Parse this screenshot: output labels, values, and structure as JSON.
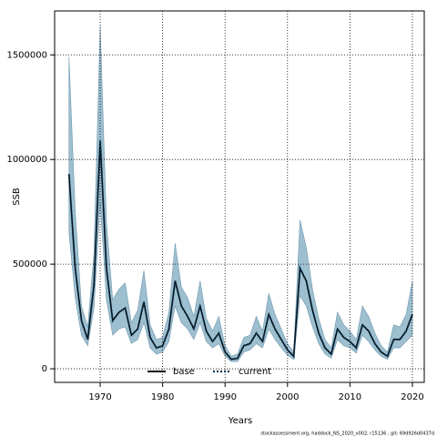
{
  "chart_data": {
    "type": "line",
    "xlabel": "Years",
    "ylabel": "SSB",
    "footer": "stockassessment.org, haddock_NS_2020_v002, r15136 , git: 69d926d0437d",
    "x": [
      1965,
      1966,
      1967,
      1968,
      1969,
      1970,
      1971,
      1972,
      1973,
      1974,
      1975,
      1976,
      1977,
      1978,
      1979,
      1980,
      1981,
      1982,
      1983,
      1984,
      1985,
      1986,
      1987,
      1988,
      1989,
      1990,
      1991,
      1992,
      1993,
      1994,
      1995,
      1996,
      1997,
      1998,
      1999,
      2000,
      2001,
      2002,
      2003,
      2004,
      2005,
      2006,
      2007,
      2008,
      2009,
      2010,
      2011,
      2012,
      2013,
      2014,
      2015,
      2016,
      2017,
      2018,
      2019,
      2020
    ],
    "series": [
      {
        "name": "base",
        "color": "#000000",
        "dash": "solid",
        "values": [
          930000,
          480000,
          230000,
          140000,
          400000,
          1090000,
          480000,
          230000,
          270000,
          290000,
          160000,
          190000,
          320000,
          150000,
          100000,
          110000,
          190000,
          420000,
          300000,
          250000,
          190000,
          300000,
          180000,
          130000,
          170000,
          80000,
          45000,
          50000,
          110000,
          120000,
          170000,
          130000,
          260000,
          190000,
          140000,
          90000,
          60000,
          480000,
          420000,
          280000,
          170000,
          100000,
          70000,
          190000,
          150000,
          130000,
          100000,
          210000,
          180000,
          120000,
          80000,
          60000,
          140000,
          140000,
          180000,
          260000
        ]
      },
      {
        "name": "current",
        "color": "#0a3a5c",
        "dash": "dotted",
        "values": [
          930000,
          480000,
          230000,
          140000,
          400000,
          1090000,
          480000,
          230000,
          270000,
          290000,
          160000,
          190000,
          320000,
          150000,
          100000,
          110000,
          190000,
          420000,
          300000,
          250000,
          190000,
          300000,
          180000,
          130000,
          170000,
          80000,
          45000,
          50000,
          110000,
          120000,
          170000,
          130000,
          260000,
          190000,
          140000,
          90000,
          60000,
          480000,
          420000,
          280000,
          170000,
          100000,
          70000,
          190000,
          150000,
          130000,
          100000,
          210000,
          180000,
          120000,
          80000,
          60000,
          140000,
          140000,
          180000,
          260000
        ]
      }
    ],
    "band": {
      "color": "#9dbfd0",
      "upper": [
        1490000,
        750000,
        300000,
        200000,
        550000,
        1640000,
        700000,
        330000,
        380000,
        410000,
        220000,
        280000,
        470000,
        210000,
        140000,
        150000,
        270000,
        600000,
        390000,
        340000,
        250000,
        420000,
        240000,
        180000,
        250000,
        110000,
        60000,
        70000,
        150000,
        160000,
        250000,
        180000,
        360000,
        260000,
        190000,
        120000,
        80000,
        710000,
        580000,
        380000,
        240000,
        140000,
        100000,
        270000,
        210000,
        180000,
        140000,
        300000,
        250000,
        170000,
        110000,
        80000,
        210000,
        200000,
        260000,
        420000
      ],
      "lower": [
        650000,
        340000,
        160000,
        110000,
        290000,
        800000,
        330000,
        160000,
        190000,
        200000,
        120000,
        140000,
        220000,
        100000,
        70000,
        80000,
        130000,
        300000,
        220000,
        190000,
        140000,
        220000,
        130000,
        100000,
        120000,
        60000,
        35000,
        35000,
        80000,
        90000,
        120000,
        100000,
        190000,
        140000,
        100000,
        65000,
        45000,
        350000,
        300000,
        200000,
        120000,
        70000,
        50000,
        140000,
        110000,
        100000,
        75000,
        160000,
        130000,
        90000,
        60000,
        45000,
        100000,
        100000,
        130000,
        160000
      ]
    },
    "xlim": [
      1962.7,
      2021.9
    ],
    "ylim": [
      -65000,
      1710000
    ],
    "xticks": [
      1970,
      1980,
      1990,
      2000,
      2010,
      2020
    ],
    "yticks": [
      0,
      500000,
      1000000,
      1500000
    ],
    "grid": true,
    "legend": "bottom"
  }
}
